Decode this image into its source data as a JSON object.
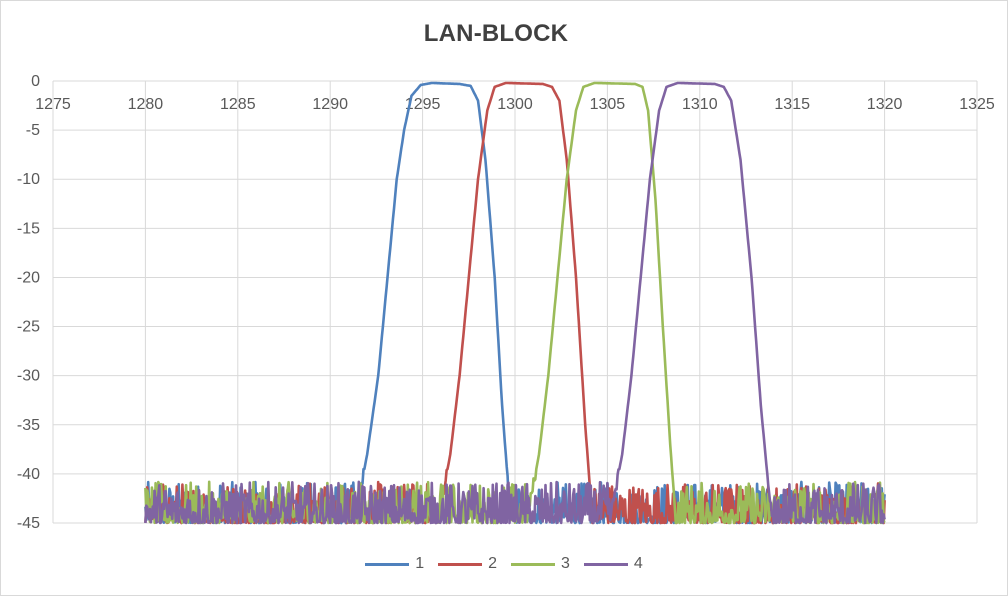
{
  "chart_data": {
    "type": "line",
    "title": "LAN-BLOCK",
    "xlabel": "",
    "ylabel": "",
    "xlim": [
      1275,
      1325
    ],
    "ylim": [
      -45,
      0
    ],
    "x_ticks": [
      "1275",
      "1280",
      "1285",
      "1290",
      "1295",
      "1300",
      "1305",
      "1310",
      "1315",
      "1320",
      "1325"
    ],
    "y_ticks": [
      "0",
      "-5",
      "-10",
      "-15",
      "-20",
      "-25",
      "-30",
      "-35",
      "-40",
      "-45"
    ],
    "x_tick_values": [
      1275,
      1280,
      1285,
      1290,
      1295,
      1300,
      1305,
      1310,
      1315,
      1320,
      1325
    ],
    "y_tick_values": [
      0,
      -5,
      -10,
      -15,
      -20,
      -25,
      -30,
      -35,
      -40,
      -45
    ],
    "grid": true,
    "legend_position": "bottom",
    "x_range_measured": [
      1280,
      1320
    ],
    "noise_floor_range": [
      -45,
      -41
    ],
    "series": [
      {
        "name": "1",
        "color": "#4f81bd",
        "points": [
          [
            1291.3,
            -45
          ],
          [
            1291.6,
            -42
          ],
          [
            1292.0,
            -38
          ],
          [
            1292.6,
            -30
          ],
          [
            1293.1,
            -20
          ],
          [
            1293.6,
            -10
          ],
          [
            1294.0,
            -5
          ],
          [
            1294.4,
            -1.5
          ],
          [
            1294.9,
            -0.4
          ],
          [
            1295.5,
            -0.2
          ],
          [
            1297.0,
            -0.3
          ],
          [
            1297.6,
            -0.5
          ],
          [
            1298.0,
            -2
          ],
          [
            1298.4,
            -8
          ],
          [
            1298.9,
            -20
          ],
          [
            1299.3,
            -33
          ],
          [
            1299.7,
            -43
          ],
          [
            1299.8,
            -45
          ]
        ]
      },
      {
        "name": "2",
        "color": "#c0504d",
        "points": [
          [
            1295.8,
            -45
          ],
          [
            1296.1,
            -42
          ],
          [
            1296.5,
            -38
          ],
          [
            1297.0,
            -30
          ],
          [
            1297.5,
            -20
          ],
          [
            1298.0,
            -10
          ],
          [
            1298.5,
            -3
          ],
          [
            1298.9,
            -0.6
          ],
          [
            1299.5,
            -0.2
          ],
          [
            1301.5,
            -0.3
          ],
          [
            1302.0,
            -0.6
          ],
          [
            1302.4,
            -2
          ],
          [
            1302.8,
            -8
          ],
          [
            1303.3,
            -20
          ],
          [
            1303.8,
            -35
          ],
          [
            1304.2,
            -45
          ]
        ]
      },
      {
        "name": "3",
        "color": "#9bbb59",
        "points": [
          [
            1300.6,
            -45
          ],
          [
            1300.9,
            -42
          ],
          [
            1301.3,
            -38
          ],
          [
            1301.8,
            -30
          ],
          [
            1302.3,
            -20
          ],
          [
            1302.8,
            -10
          ],
          [
            1303.3,
            -3
          ],
          [
            1303.7,
            -0.6
          ],
          [
            1304.3,
            -0.2
          ],
          [
            1306.5,
            -0.3
          ],
          [
            1306.9,
            -0.6
          ],
          [
            1307.2,
            -3
          ],
          [
            1307.6,
            -12
          ],
          [
            1308.0,
            -25
          ],
          [
            1308.4,
            -37
          ],
          [
            1308.7,
            -45
          ]
        ]
      },
      {
        "name": "4",
        "color": "#8064a2",
        "points": [
          [
            1305.1,
            -45
          ],
          [
            1305.4,
            -42
          ],
          [
            1305.8,
            -38
          ],
          [
            1306.3,
            -30
          ],
          [
            1306.8,
            -20
          ],
          [
            1307.3,
            -10
          ],
          [
            1307.8,
            -3
          ],
          [
            1308.2,
            -0.6
          ],
          [
            1308.8,
            -0.2
          ],
          [
            1310.8,
            -0.3
          ],
          [
            1311.3,
            -0.6
          ],
          [
            1311.7,
            -2
          ],
          [
            1312.2,
            -8
          ],
          [
            1312.8,
            -20
          ],
          [
            1313.3,
            -33
          ],
          [
            1313.8,
            -43
          ],
          [
            1314.0,
            -45
          ]
        ]
      }
    ]
  }
}
